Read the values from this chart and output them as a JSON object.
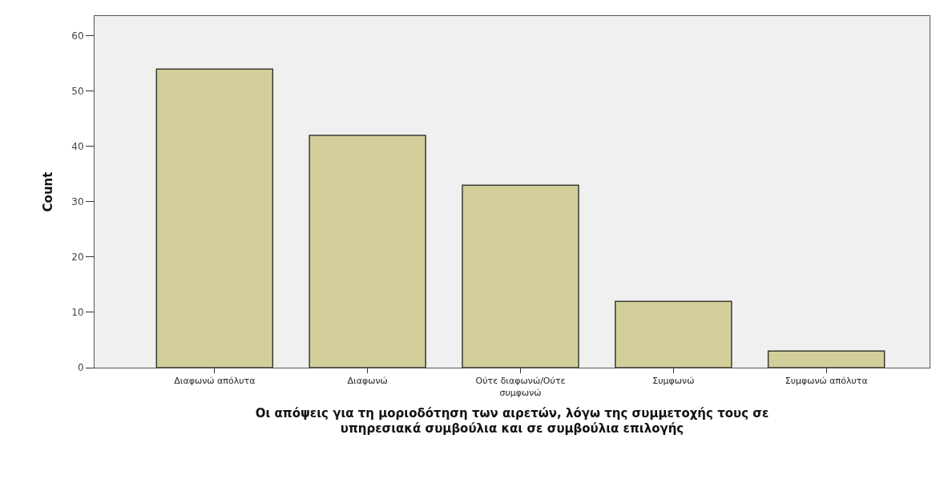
{
  "chart_data": {
    "type": "bar",
    "xlabel": "Οι απόψεις για τη μοριοδότηση των αιρετών, λόγω της συμμετοχής τους σε υπηρεσιακά συμβούλια και σε συμβούλια επιλογής",
    "ylabel": "Count",
    "categories": [
      "Διαφωνώ απόλυτα",
      "Διαφωνώ",
      "Ούτε διαφωνώ/Ούτε συμφωνώ",
      "Συμφωνώ",
      "Συμφωνώ απόλυτα"
    ],
    "values": [
      54,
      42,
      33,
      12,
      3
    ],
    "color": "#d3cf9b",
    "ylim": [
      0,
      63.6
    ],
    "yticks": [
      0,
      10,
      20,
      30,
      40,
      50,
      60
    ],
    "grid": false
  }
}
